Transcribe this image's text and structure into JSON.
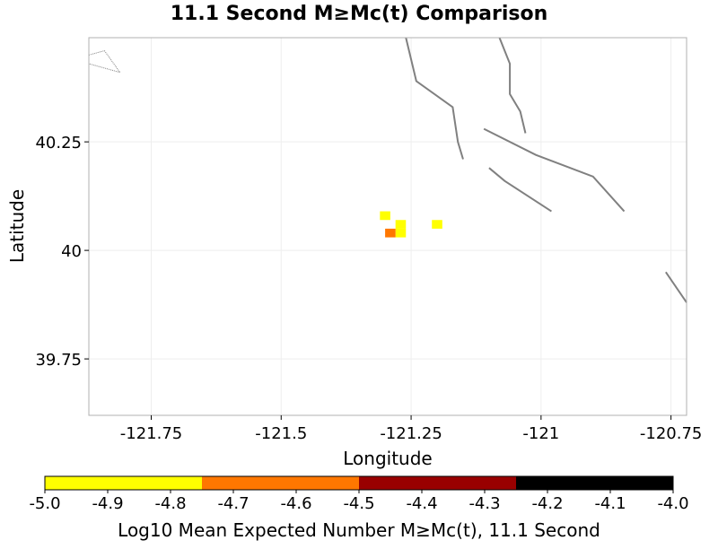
{
  "chart_data": {
    "type": "heatmap",
    "title": "11.1 Second M≥Mc(t) Comparison",
    "xlabel": "Longitude",
    "ylabel": "Latitude",
    "xlim": [
      -121.87,
      -120.72
    ],
    "ylim": [
      39.62,
      40.49
    ],
    "x_ticks": [
      -121.75,
      -121.5,
      -121.25,
      -121.0,
      -120.75
    ],
    "x_tick_labels": [
      "-121.75",
      "-121.5",
      "-121.25",
      "-121",
      "-120.75"
    ],
    "y_ticks": [
      39.75,
      40.0,
      40.25
    ],
    "y_tick_labels": [
      "39.75",
      "40",
      "40.25"
    ],
    "grid": true,
    "cell_size_deg": 0.02,
    "cells": [
      {
        "lon": -121.3,
        "lat": 40.08,
        "value": -4.95,
        "label": "-4.95"
      },
      {
        "lon": -121.27,
        "lat": 40.06,
        "value": -4.95,
        "label": "-4.95"
      },
      {
        "lon": -121.27,
        "lat": 40.04,
        "value": -4.95,
        "label": "-4.95"
      },
      {
        "lon": -121.29,
        "lat": 40.04,
        "value": -4.65,
        "label": "-4.65"
      },
      {
        "lon": -121.2,
        "lat": 40.06,
        "value": -4.95,
        "label": "-4.95"
      }
    ],
    "fault_traces": [
      [
        [
          -121.87,
          40.45
        ],
        [
          -121.84,
          40.46
        ],
        [
          -121.81,
          40.41
        ],
        [
          -121.87,
          40.43
        ]
      ],
      [
        [
          -121.26,
          40.49
        ],
        [
          -121.24,
          40.39
        ],
        [
          -121.17,
          40.33
        ],
        [
          -121.16,
          40.25
        ],
        [
          -121.15,
          40.21
        ]
      ],
      [
        [
          -121.08,
          40.49
        ],
        [
          -121.06,
          40.43
        ],
        [
          -121.06,
          40.36
        ],
        [
          -121.04,
          40.32
        ],
        [
          -121.03,
          40.27
        ]
      ],
      [
        [
          -121.11,
          40.28
        ],
        [
          -121.01,
          40.22
        ],
        [
          -120.9,
          40.17
        ],
        [
          -120.84,
          40.09
        ]
      ],
      [
        [
          -121.1,
          40.19
        ],
        [
          -121.07,
          40.16
        ],
        [
          -120.98,
          40.09
        ]
      ],
      [
        [
          -120.76,
          39.95
        ],
        [
          -120.72,
          39.88
        ]
      ]
    ],
    "colorbar": {
      "label": "Log10 Mean Expected Number M≥Mc(t), 11.1 Second",
      "range": [
        -5.0,
        -4.0
      ],
      "tick_values": [
        -5.0,
        -4.9,
        -4.8,
        -4.7,
        -4.6,
        -4.5,
        -4.4,
        -4.3,
        -4.2,
        -4.1,
        -4.0
      ],
      "tick_labels": [
        "-5.0",
        "-4.9",
        "-4.8",
        "-4.7",
        "-4.6",
        "-4.5",
        "-4.4",
        "-4.3",
        "-4.2",
        "-4.1",
        "-4.0"
      ],
      "bins": [
        {
          "from": -5.0,
          "to": -4.75,
          "color": "#ffff00"
        },
        {
          "from": -4.75,
          "to": -4.5,
          "color": "#ff7700"
        },
        {
          "from": -4.5,
          "to": -4.25,
          "color": "#990000"
        },
        {
          "from": -4.25,
          "to": -4.0,
          "color": "#000000"
        }
      ]
    },
    "colors": {
      "fault_line": "#808080",
      "grid_line": "#eeeeee",
      "frame": "#b0b0b0"
    }
  }
}
